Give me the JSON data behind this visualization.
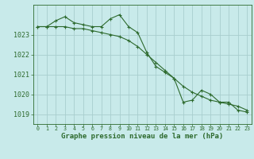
{
  "title": "Graphe pression niveau de la mer (hPa)",
  "xlabel": "Graphe pression niveau de la mer (hPa)",
  "xlim": [
    -0.5,
    23.5
  ],
  "ylim": [
    1018.5,
    1024.5
  ],
  "yticks": [
    1019,
    1020,
    1021,
    1022,
    1023
  ],
  "xticks": [
    0,
    1,
    2,
    3,
    4,
    5,
    6,
    7,
    8,
    9,
    10,
    11,
    12,
    13,
    14,
    15,
    16,
    17,
    18,
    19,
    20,
    21,
    22,
    23
  ],
  "bg_color": "#c8eaea",
  "line_color": "#2d6a2d",
  "grid_color": "#a8cece",
  "series1_x": [
    0,
    1,
    2,
    3,
    4,
    5,
    6,
    7,
    8,
    9,
    10,
    11,
    12,
    13,
    14,
    15,
    16,
    17,
    18,
    19,
    20,
    21,
    22,
    23
  ],
  "series1_y": [
    1023.4,
    1023.4,
    1023.7,
    1023.9,
    1023.6,
    1023.5,
    1023.4,
    1023.4,
    1023.8,
    1024.0,
    1023.4,
    1023.1,
    1022.1,
    1021.4,
    1021.1,
    1020.8,
    1019.6,
    1019.7,
    1020.2,
    1020.0,
    1019.6,
    1019.6,
    1019.2,
    1019.1
  ],
  "series2_x": [
    0,
    1,
    2,
    3,
    4,
    5,
    6,
    7,
    8,
    9,
    10,
    11,
    12,
    13,
    14,
    15,
    16,
    17,
    18,
    19,
    20,
    21,
    22,
    23
  ],
  "series2_y": [
    1023.4,
    1023.4,
    1023.4,
    1023.4,
    1023.3,
    1023.3,
    1023.2,
    1023.1,
    1023.0,
    1022.9,
    1022.7,
    1022.4,
    1022.0,
    1021.6,
    1021.2,
    1020.8,
    1020.4,
    1020.1,
    1019.9,
    1019.7,
    1019.6,
    1019.5,
    1019.4,
    1019.2
  ],
  "figsize": [
    3.2,
    2.0
  ],
  "dpi": 100,
  "ylabel_fontsize": 6,
  "xlabel_fontsize": 6.5,
  "xtick_fontsize": 4.8,
  "ytick_fontsize": 6
}
